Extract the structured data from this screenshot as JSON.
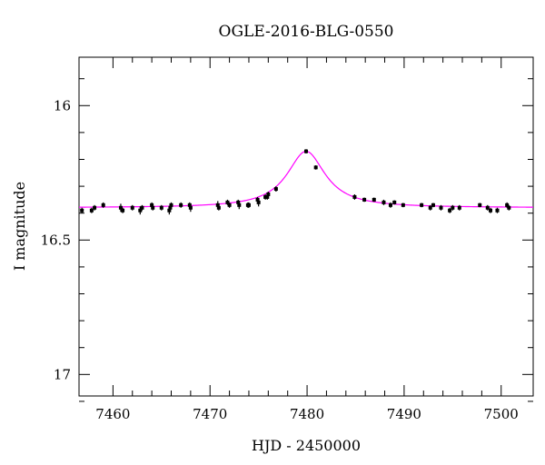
{
  "chart_data": {
    "type": "scatter",
    "title": "OGLE-2016-BLG-0550",
    "xlabel": "HJD - 2450000",
    "ylabel": "I magnitude",
    "xlim": [
      7456.5,
      7503.3
    ],
    "ylim": [
      15.82,
      17.08
    ],
    "y_inverted": true,
    "grid": false,
    "xticks": [
      7460,
      7470,
      7480,
      7490,
      7500
    ],
    "yticks": [
      16,
      16.5,
      17
    ],
    "xtick_labels": [
      "7460",
      "7470",
      "7480",
      "7490",
      "7500"
    ],
    "ytick_labels": [
      "16",
      "16.5",
      "17"
    ],
    "colors": {
      "data": "#000000",
      "model": "#ff00ff"
    },
    "model": {
      "baseline": 16.38,
      "peak": 16.17,
      "t0": 7479.9,
      "tE": 2.4
    },
    "series": [
      {
        "kind": "points",
        "x": [
          7456.8,
          7457.8,
          7458.1,
          7459.0,
          7460.8,
          7461.0,
          7462.0,
          7462.8,
          7463.0,
          7464.0,
          7464.1,
          7465.0,
          7465.8,
          7465.9,
          7466.0,
          7467.0,
          7467.9,
          7468.0,
          7470.8,
          7470.9,
          7471.8,
          7472.0,
          7472.9,
          7473.0,
          7473.9,
          7474.0,
          7474.9,
          7475.0,
          7475.7,
          7475.9,
          7476.0,
          7476.8,
          7479.9,
          7480.9,
          7484.9,
          7485.9,
          7486.9,
          7487.9,
          7488.6,
          7489.0,
          7489.9,
          7491.8,
          7492.7,
          7493.0,
          7493.8,
          7494.7,
          7495.0,
          7495.7,
          7497.8,
          7498.6,
          7498.9,
          7499.6,
          7500.6,
          7500.8
        ],
        "y": [
          16.39,
          16.39,
          16.38,
          16.37,
          16.38,
          16.39,
          16.38,
          16.39,
          16.38,
          16.37,
          16.38,
          16.38,
          16.39,
          16.38,
          16.37,
          16.37,
          16.37,
          16.38,
          16.37,
          16.38,
          16.36,
          16.37,
          16.36,
          16.37,
          16.37,
          16.37,
          16.35,
          16.36,
          16.34,
          16.34,
          16.33,
          16.31,
          16.17,
          16.23,
          16.34,
          16.35,
          16.35,
          16.36,
          16.37,
          16.36,
          16.37,
          16.37,
          16.38,
          16.37,
          16.38,
          16.39,
          16.38,
          16.38,
          16.37,
          16.38,
          16.39,
          16.39,
          16.37,
          16.38
        ],
        "err": [
          0.01,
          0.01,
          0.01,
          0.01,
          0.015,
          0.01,
          0.01,
          0.015,
          0.01,
          0.01,
          0.01,
          0.01,
          0.015,
          0.01,
          0.01,
          0.01,
          0.01,
          0.015,
          0.015,
          0.01,
          0.01,
          0.01,
          0.01,
          0.015,
          0.01,
          0.01,
          0.01,
          0.015,
          0.01,
          0.01,
          0.01,
          0.01,
          0.008,
          0.008,
          0.01,
          0.008,
          0.008,
          0.01,
          0.01,
          0.008,
          0.008,
          0.008,
          0.01,
          0.008,
          0.01,
          0.01,
          0.01,
          0.01,
          0.008,
          0.01,
          0.01,
          0.01,
          0.01,
          0.01
        ]
      }
    ]
  }
}
